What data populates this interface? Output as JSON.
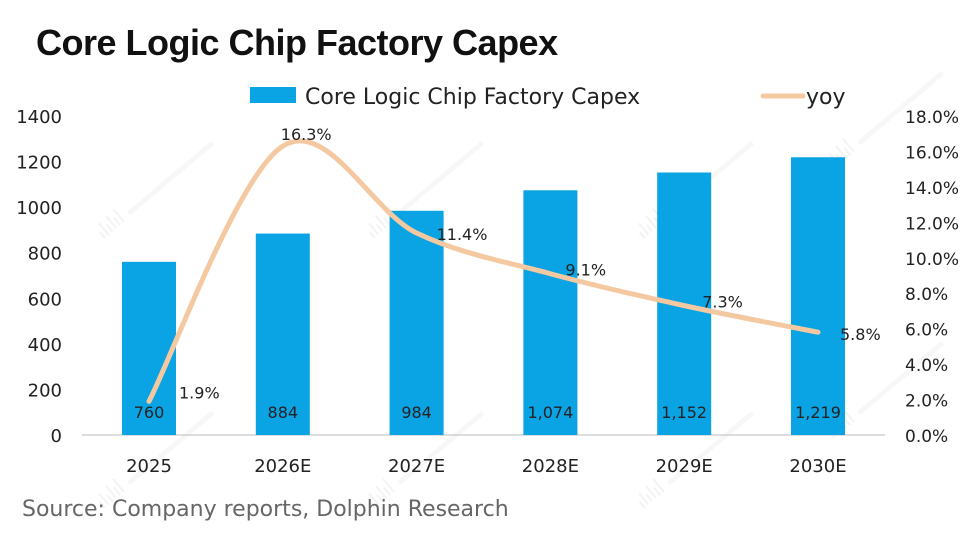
{
  "title": "Core Logic Chip Factory Capex",
  "source": "Source: Company reports, Dolphin Research",
  "watermark": "DolphinResearch",
  "chart_data": {
    "type": "bar+line",
    "categories": [
      "2025",
      "2026E",
      "2027E",
      "2028E",
      "2029E",
      "2030E"
    ],
    "series": [
      {
        "name": "Core Logic Chip Factory Capex",
        "type": "bar",
        "axis": "left",
        "color": "#0aa3e3",
        "values": [
          760,
          884,
          984,
          1074,
          1152,
          1219
        ],
        "labels": [
          "760",
          "884",
          "984",
          "1,074",
          "1,152",
          "1,219"
        ]
      },
      {
        "name": "yoy",
        "type": "line",
        "axis": "right",
        "color": "#f4c9a2",
        "smooth": true,
        "values": [
          1.9,
          16.3,
          11.4,
          9.1,
          7.3,
          5.8
        ],
        "labels": [
          "1.9%",
          "16.3%",
          "11.4%",
          "9.1%",
          "7.3%",
          "5.8%"
        ]
      }
    ],
    "left_axis": {
      "ylim": [
        0,
        1400
      ],
      "ticks": [
        "0",
        "200",
        "400",
        "600",
        "800",
        "1000",
        "1200",
        "1400"
      ]
    },
    "right_axis": {
      "ylim": [
        0,
        18
      ],
      "ticks": [
        "0.0%",
        "2.0%",
        "4.0%",
        "6.0%",
        "8.0%",
        "10.0%",
        "12.0%",
        "14.0%",
        "16.0%",
        "18.0%"
      ]
    },
    "grid": false,
    "legend": "top"
  }
}
